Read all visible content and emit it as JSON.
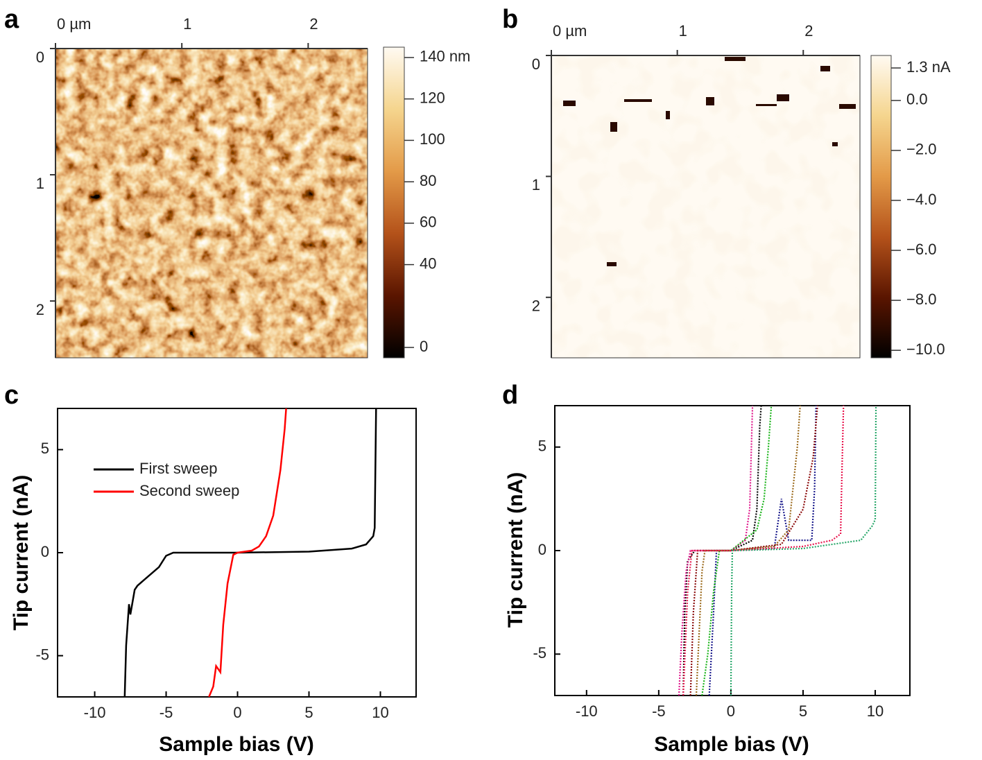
{
  "chart_data": [
    {
      "type": "image",
      "label": "a",
      "xticks": [
        {
          "value": 0,
          "label": "0 µm"
        },
        1,
        2
      ],
      "xlim": [
        0,
        2.47
      ],
      "yticks": [
        0,
        1,
        2
      ],
      "ylim": [
        0,
        2.45
      ],
      "colormap": [
        "#000000",
        "#5a1500",
        "#b4521a",
        "#e39a48",
        "#f5d58e",
        "#fffaf2"
      ],
      "clim": [
        -5,
        145
      ],
      "cticks": [
        {
          "value": 140,
          "label": "140 nm"
        },
        120,
        100,
        80,
        60,
        40,
        0
      ]
    },
    {
      "type": "image",
      "label": "b",
      "xticks": [
        {
          "value": 0,
          "label": "0 µm"
        },
        1,
        2
      ],
      "xlim": [
        0,
        2.45
      ],
      "yticks": [
        0,
        1,
        2
      ],
      "ylim": [
        0,
        2.5
      ],
      "colormap": [
        "#000000",
        "#5a1500",
        "#b4521a",
        "#e39a48",
        "#f5d58e",
        "#fffaf2"
      ],
      "clim": [
        -10.3,
        1.8
      ],
      "cticks": [
        {
          "value": 1.3,
          "label": "1.3 nA"
        },
        {
          "value": 0,
          "label": "0.0"
        },
        {
          "value": -2,
          "label": "−2.0"
        },
        {
          "value": -4,
          "label": "−4.0"
        },
        {
          "value": -6,
          "label": "−6.0"
        },
        {
          "value": -8,
          "label": "−8.0"
        },
        {
          "value": -10,
          "label": "−10.0"
        }
      ]
    },
    {
      "type": "line",
      "label": "c",
      "x_label": "Sample bias (V)",
      "y_label": "Tip current (nA)",
      "xlim": [
        -12.6,
        12.5
      ],
      "ylim": [
        -7,
        7
      ],
      "xticks": [
        -10,
        -5,
        0,
        5,
        10
      ],
      "yticks": [
        -5,
        0,
        5
      ],
      "legend": "upper left",
      "series": [
        {
          "name": "First sweep",
          "color": "#000000",
          "x": [
            -7.9,
            -7.8,
            -7.6,
            -7.5,
            -7.2,
            -7.0,
            -6.5,
            -6.0,
            -5.5,
            -5.0,
            -4.5,
            0,
            5,
            8,
            9,
            9.5,
            9.6,
            9.7
          ],
          "values": [
            -7,
            -4.5,
            -2.5,
            -3,
            -1.8,
            -1.6,
            -1.3,
            -1.0,
            -0.7,
            -0.15,
            0,
            0,
            0.05,
            0.2,
            0.4,
            0.8,
            1.2,
            7
          ]
        },
        {
          "name": "Second sweep",
          "color": "#ff0000",
          "x": [
            -2.0,
            -1.7,
            -1.5,
            -1.2,
            -1.0,
            -0.7,
            -0.3,
            0,
            1,
            1.5,
            2,
            2.5,
            3,
            3.3,
            3.4
          ],
          "values": [
            -7,
            -6.5,
            -5.5,
            -5.8,
            -3.5,
            -1.5,
            -0.1,
            0,
            0.1,
            0.3,
            0.8,
            1.8,
            4,
            6,
            7
          ]
        }
      ]
    },
    {
      "type": "line",
      "label": "d",
      "x_label": "Sample bias (V)",
      "y_label": "Tip current (nA)",
      "xlim": [
        -12.2,
        12.4
      ],
      "ylim": [
        -7,
        7
      ],
      "xticks": [
        -10,
        -5,
        0,
        5,
        10
      ],
      "yticks": [
        -5,
        0,
        5
      ],
      "dashed": true,
      "series": [
        {
          "color": "#000000",
          "x": [
            -3.3,
            -3.2,
            -3.0,
            -2.5,
            0,
            1.5,
            1.8,
            2.0,
            2.1
          ],
          "values": [
            -7,
            -3,
            -0.5,
            0,
            0,
            0.5,
            2,
            6,
            7
          ]
        },
        {
          "color": "#1a1a8c",
          "x": [
            -1.5,
            -1.2,
            -1.0,
            0,
            3,
            3.5,
            4,
            5.6,
            5.8,
            5.9
          ],
          "values": [
            -7,
            -3,
            0,
            0,
            0.1,
            2.5,
            0.5,
            0.5,
            3,
            7
          ]
        },
        {
          "color": "#e0198c",
          "x": [
            -3.6,
            -3.4,
            -3.1,
            -2.8,
            0,
            1,
            1.3,
            1.5
          ],
          "values": [
            -7,
            -4,
            -1,
            0,
            0,
            0.5,
            2,
            7
          ]
        },
        {
          "color": "#19b419",
          "x": [
            -2.0,
            -1.6,
            -1.2,
            -0.8,
            0,
            1.8,
            2.3,
            2.6,
            2.8
          ],
          "values": [
            -7,
            -5,
            -2,
            0,
            0,
            1,
            2.5,
            5,
            7
          ]
        },
        {
          "color": "#9c6b1e",
          "x": [
            -2.4,
            -2.2,
            -2.0,
            -1.8,
            0,
            3,
            4,
            4.6,
            4.8
          ],
          "values": [
            -7,
            -4,
            -1,
            0,
            0,
            0.2,
            1,
            5,
            7
          ]
        },
        {
          "color": "#8b0a0a",
          "x": [
            -2.8,
            -2.6,
            -2.3,
            0,
            3.5,
            5,
            5.7,
            6
          ],
          "values": [
            -7,
            -3,
            0,
            0,
            0.3,
            2,
            4.5,
            7
          ]
        },
        {
          "color": "#e8174f",
          "x": [
            -3.3,
            -3.0,
            -2.7,
            0,
            5,
            7,
            7.6,
            7.7,
            7.8
          ],
          "values": [
            -7,
            -2,
            0,
            0,
            0.2,
            0.5,
            0.8,
            4,
            7
          ]
        },
        {
          "color": "#2aa86b",
          "x": [
            0,
            0.05,
            0.1,
            5,
            9,
            9.8,
            10,
            10.05
          ],
          "values": [
            -7,
            -2,
            0,
            0.1,
            0.5,
            1.2,
            1.5,
            7
          ]
        }
      ]
    }
  ]
}
